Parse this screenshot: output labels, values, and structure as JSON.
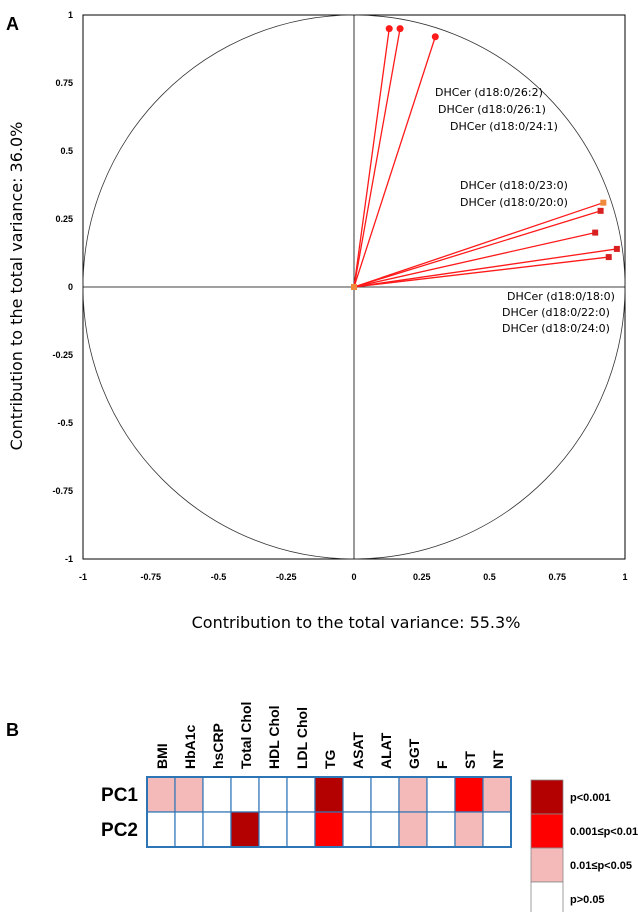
{
  "chart_data": [
    {
      "panel": "A",
      "type": "scatter",
      "xlabel": "Contribution to the total variance: 55.3%",
      "ylabel": "Contribution to the total variance: 36.0%",
      "xlim": [
        -1,
        1
      ],
      "ylim": [
        -1,
        1
      ],
      "xticks": [
        "-1",
        "-0.75",
        "-0.5",
        "-0.25",
        "0",
        "0.25",
        "0.5",
        "0.75",
        "1"
      ],
      "yticks": [
        "1",
        "0.75",
        "0.5",
        "0.25",
        "0",
        "-0.25",
        "-0.5",
        "-0.75",
        "-1"
      ],
      "unit_circle": true,
      "vectors": [
        {
          "x": 0.13,
          "y": 0.95,
          "marker": "circle",
          "color": "#ff1a1a"
        },
        {
          "x": 0.17,
          "y": 0.95,
          "marker": "circle",
          "color": "#ff1a1a"
        },
        {
          "x": 0.3,
          "y": 0.92,
          "marker": "circle",
          "color": "#ff1a1a"
        },
        {
          "x": 0.92,
          "y": 0.31,
          "marker": "square",
          "color": "#f08a3c"
        },
        {
          "x": 0.91,
          "y": 0.28,
          "marker": "square",
          "color": "#d92020"
        },
        {
          "x": 0.89,
          "y": 0.2,
          "marker": "square",
          "color": "#d92020"
        },
        {
          "x": 0.97,
          "y": 0.14,
          "marker": "square",
          "color": "#d92020"
        },
        {
          "x": 0.94,
          "y": 0.11,
          "marker": "square",
          "color": "#d92020"
        }
      ],
      "annotations": [
        "DHCer (d18:0/26:2)",
        "DHCer (d18:0/26:1)",
        "DHCer (d18:0/24:1)",
        "DHCer (d18:0/23:0)",
        "DHCer (d18:0/20:0)",
        "DHCer (d18:0/18:0)",
        "DHCer (d18:0/22:0)",
        "DHCer (d18:0/24:0)"
      ]
    },
    {
      "panel": "B",
      "type": "heatmap",
      "columns": [
        "BMI",
        "HbA1c",
        "hsCRP",
        "Total Chol",
        "HDL Chol",
        "LDL Chol",
        "TG",
        "ASAT",
        "ALAT",
        "GGT",
        "F",
        "ST",
        "NT"
      ],
      "rows": [
        {
          "name": "PC1",
          "levels": [
            1,
            1,
            0,
            0,
            0,
            0,
            3,
            0,
            0,
            1,
            0,
            2,
            1
          ]
        },
        {
          "name": "PC2",
          "levels": [
            0,
            0,
            0,
            3,
            0,
            0,
            2,
            0,
            0,
            1,
            0,
            1,
            0
          ]
        }
      ],
      "legend": [
        {
          "label": "p<0.001",
          "color": "#b30000",
          "level": 3
        },
        {
          "label": "0.001≤p<0.01",
          "color": "#ff0000",
          "level": 2
        },
        {
          "label": "0.01≤p<0.05",
          "color": "#f4b9b9",
          "level": 1
        },
        {
          "label": "p>0.05",
          "color": "#ffffff",
          "level": 0
        }
      ]
    }
  ],
  "colors": {
    "vector_line": "#ff1a1a",
    "grid_border": "#2e75b6",
    "axis": "#000000"
  }
}
